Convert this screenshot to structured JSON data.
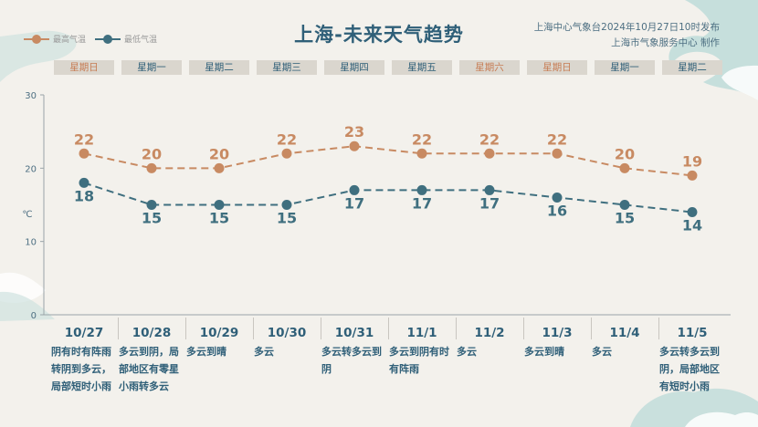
{
  "header": {
    "title": "上海-未来天气趋势",
    "issuer_line1": "上海中心气象台2024年10月27日10时发布",
    "issuer_line2": "上海市气象服务中心 制作"
  },
  "legend": {
    "high_label": "最高气温",
    "low_label": "最低气温"
  },
  "colors": {
    "high": "#c88a62",
    "low": "#3f6f7f",
    "text": "#2f5f78",
    "weekend": "#c77d55"
  },
  "chart_data": {
    "type": "line",
    "ylabel": "℃",
    "ylim": [
      0,
      30
    ],
    "yticks": [
      "0",
      "10",
      "20",
      "30"
    ],
    "categories": [
      "10/27",
      "10/28",
      "10/29",
      "10/30",
      "10/31",
      "11/1",
      "11/2",
      "11/3",
      "11/4",
      "11/5"
    ],
    "weekdays": [
      "星期日",
      "星期一",
      "星期二",
      "星期三",
      "星期四",
      "星期五",
      "星期六",
      "星期日",
      "星期一",
      "星期二"
    ],
    "weekend_flags": [
      true,
      false,
      false,
      false,
      false,
      false,
      true,
      true,
      false,
      false
    ],
    "series": [
      {
        "name": "最高气温",
        "values": [
          22,
          20,
          20,
          22,
          23,
          22,
          22,
          22,
          20,
          19
        ]
      },
      {
        "name": "最低气温",
        "values": [
          18,
          15,
          15,
          15,
          17,
          17,
          17,
          16,
          15,
          14
        ]
      }
    ],
    "descriptions": [
      "阴有时有阵雨转阴到多云，局部短时小雨",
      "多云到阴，局部地区有零星小雨转多云",
      "多云到晴",
      "多云",
      "多云转多云到阴",
      "多云到阴有时有阵雨",
      "多云",
      "多云到晴",
      "多云",
      "多云转多云到阴，局部地区有短时小雨"
    ]
  }
}
